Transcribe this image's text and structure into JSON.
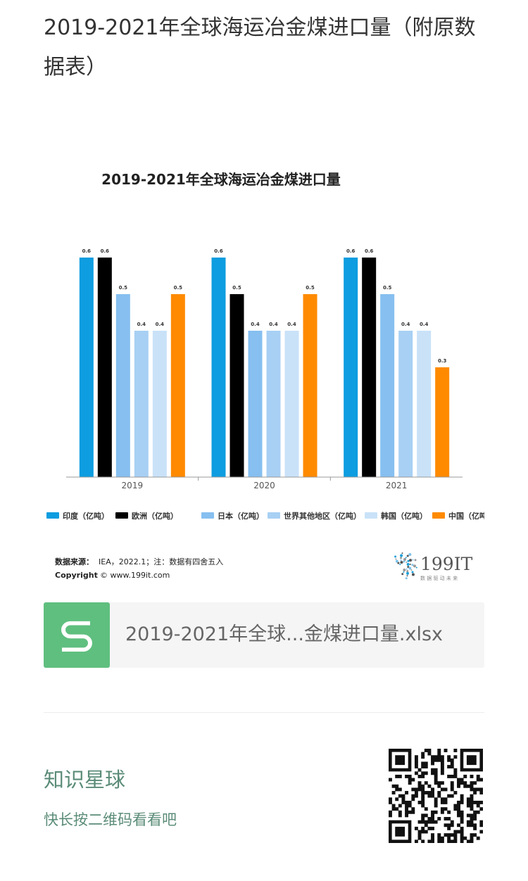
{
  "article": {
    "title": "2019-2021年全球海运冶金煤进口量（附原数据表）"
  },
  "chart_data": {
    "type": "bar",
    "title": "2019-2021年全球海运冶金煤进口量",
    "categories": [
      "2019",
      "2020",
      "2021"
    ],
    "series": [
      {
        "name": "印度（亿吨）",
        "color": "#0d9de0",
        "values": [
          0.6,
          0.6,
          0.6
        ]
      },
      {
        "name": "欧洲（亿吨）",
        "color": "#000000",
        "values": [
          0.6,
          0.5,
          0.6
        ]
      },
      {
        "name": "日本（亿吨）",
        "color": "#86bff0",
        "values": [
          0.5,
          0.4,
          0.5
        ]
      },
      {
        "name": "世界其他地区（亿吨）",
        "color": "#a8d0f4",
        "values": [
          0.4,
          0.4,
          0.4
        ]
      },
      {
        "name": "韩国（亿吨）",
        "color": "#c9e2f8",
        "values": [
          0.4,
          0.4,
          0.4
        ]
      },
      {
        "name": "中国（亿吨）",
        "color": "#ff8a00",
        "values": [
          0.5,
          0.5,
          0.3
        ]
      }
    ],
    "ylim": [
      0,
      0.6
    ],
    "grid": false,
    "legend_position": "bottom",
    "data_labels": true,
    "source_label": "数据来源：",
    "source_text": "IEA，2022.1；注：数据有四舍五入",
    "copyright_label": "Copyright",
    "copyright_text": "© www.199it.com",
    "logo_text": "199IT",
    "logo_tagline": "数 据 驱 动 未 来"
  },
  "attachment": {
    "file_name": "2019-2021年全球...金煤进口量.xlsx",
    "icon": "spreadsheet-s-icon",
    "icon_color": "#5fbf7f"
  },
  "promo": {
    "title": "知识星球",
    "subtitle": "快长按二维码看看吧",
    "accent_color": "#5b8c78",
    "qr_icon": "qr-code-icon"
  }
}
